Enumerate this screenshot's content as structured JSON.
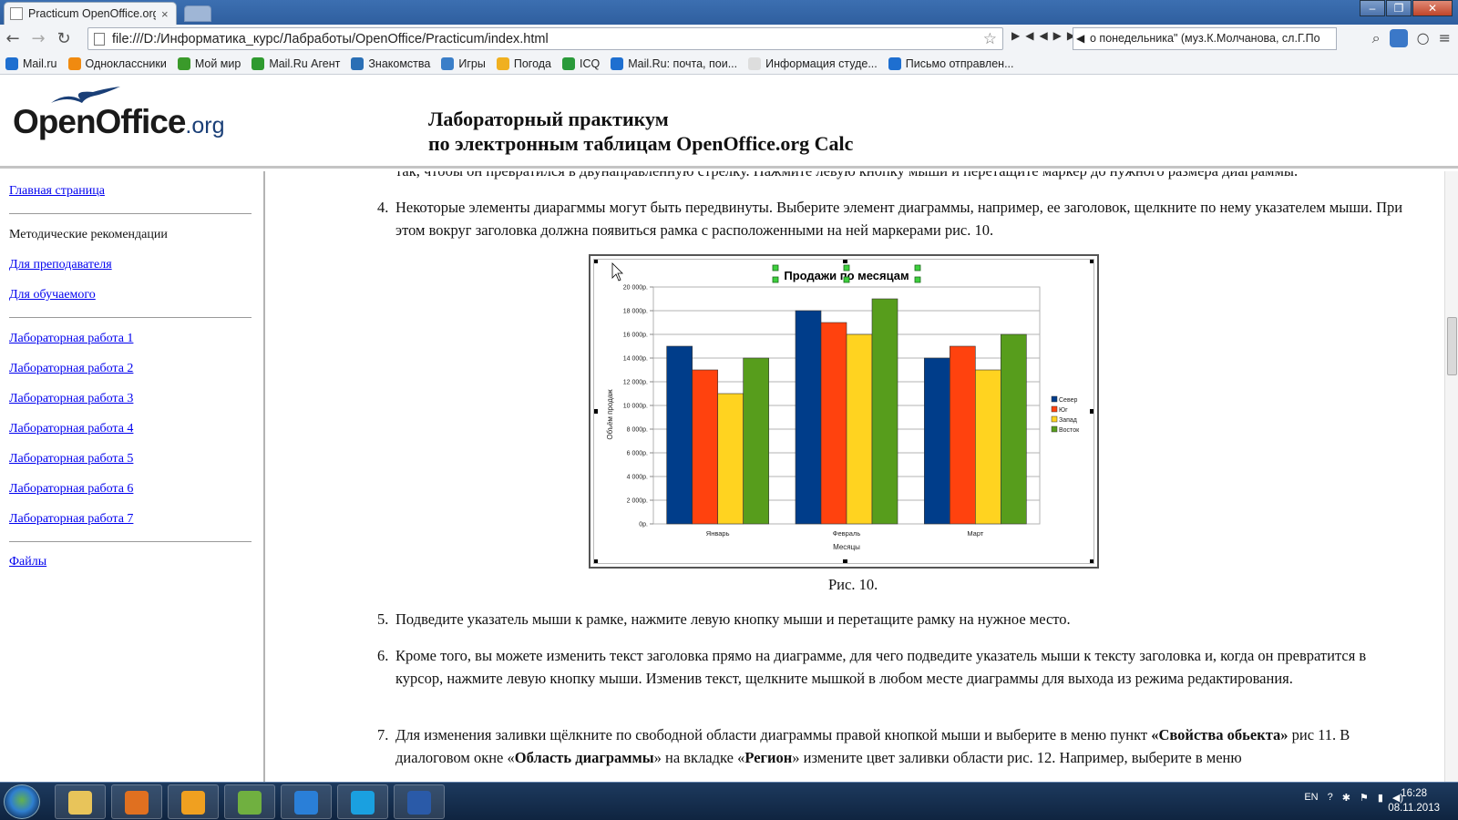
{
  "browser": {
    "tab_title": "Practicum OpenOffice.org",
    "tab_close": "×",
    "window_buttons": [
      "–",
      "❐",
      "✕"
    ],
    "url": "file:///D:/Информатика_курс/Лабработы/OpenOffice/Practicum/index.html",
    "radio_text": "о понедельника\" (муз.К.Молчанова, сл.Г.По",
    "bookmarks": [
      "Mail.ru",
      "Одноклассники",
      "Мой мир",
      "Mail.Ru Агент",
      "Знакомства",
      "Игры",
      "Погода",
      "ICQ",
      "Mail.Ru: почта, пои...",
      "Информация студе...",
      "Письмо отправлен..."
    ],
    "bookmark_colors": [
      "#1e6fd0",
      "#f08a10",
      "#3a9a2a",
      "#2f9a2f",
      "#2a6fb5",
      "#3a7ec8",
      "#f0b020",
      "#2a9a3a",
      "#1e6fd0",
      "#dddddd",
      "#1e6fd0"
    ]
  },
  "header": {
    "logo_main": "OpenOffice",
    "logo_suffix": ".org",
    "title_line1": "Лабораторный практикум",
    "title_line2": "по электронным таблицам OpenOffice.org Calc"
  },
  "sidebar": {
    "home": "Главная страница",
    "method_heading": "Методические рекомендации",
    "for_teacher": "Для преподавателя",
    "for_student": "Для обучаемого",
    "labs": [
      "Лабораторная работа 1",
      "Лабораторная работа 2",
      "Лабораторная работа 3",
      "Лабораторная работа 4",
      "Лабораторная работа 5",
      "Лабораторная работа 6",
      "Лабораторная работа 7"
    ],
    "files": "Файлы"
  },
  "content": {
    "cut_line": "так, чтобы он превратился в двунаправленную стрелку. Нажмите левую кнопку мыши и перетащите маркер до нужного размера диаграммы.",
    "item4_num": "4.",
    "item4": "Некоторые элементы диарагммы могут быть передвинуты. Выберите элемент диаграммы, например, ее заголовок, щелкните по нему указателем мыши. При этом вокруг заголовка должна появиться рамка с расположенными на ней маркерами рис. 10.",
    "caption": "Рис. 10.",
    "item5_num": "5.",
    "item5": "Подведите указатель мыши к рамке, нажмите левую кнопку мыши и перетащите рамку на нужное место.",
    "item6_num": "6.",
    "item6": "Кроме того, вы можете изменить текст заголовка прямо на диаграмме, для чего подведите указатель мыши к тексту заголовка и, когда он превратится в курсор, нажмите левую кнопку мыши. Изменив текст, щелкните мышкой в любом месте диаграммы для выхода из режима редактирования.",
    "item7_num": "7.",
    "item7_a": "Для изменения заливки щёлкните по свободной области диаграммы правой кнопкой мыши и выберите в меню пункт ",
    "item7_b": "«Свойства обьекта»",
    "item7_c": " рис 11. В диалоговом окне «",
    "item7_d": "Область диаграммы",
    "item7_e": "» на вкладке «",
    "item7_f": "Регион",
    "item7_g": "» измените цвет заливки области рис. 12. Например, выберите в меню"
  },
  "chart_data": {
    "type": "bar",
    "title": "Продажи по месяцам",
    "xlabel": "Месяцы",
    "ylabel": "Объём продаж",
    "categories": [
      "Январь",
      "Февраль",
      "Март"
    ],
    "series": [
      {
        "name": "Север",
        "values": [
          15000,
          18000,
          14000
        ],
        "color": "#003d8a"
      },
      {
        "name": "Юг",
        "values": [
          13000,
          17000,
          15000
        ],
        "color": "#ff420e"
      },
      {
        "name": "Запад",
        "values": [
          11000,
          16000,
          13000
        ],
        "color": "#ffd320"
      },
      {
        "name": "Восток",
        "values": [
          14000,
          19000,
          16000
        ],
        "color": "#579d1c"
      }
    ],
    "ylim": [
      0,
      20000
    ],
    "yticks": [
      "0р.",
      "2 000р.",
      "4 000р.",
      "6 000р.",
      "8 000р.",
      "10 000р.",
      "12 000р.",
      "14 000р.",
      "16 000р.",
      "18 000р.",
      "20 000р."
    ],
    "grid": true,
    "legend": "right"
  },
  "taskbar": {
    "lang": "EN",
    "time": "16:28",
    "date": "08.11.2013",
    "app_colors": [
      "#e8c45a",
      "#e07020",
      "#f0a020",
      "#70b040",
      "#2a7fd8",
      "#1aa0e0",
      "#2a5aa8"
    ]
  }
}
